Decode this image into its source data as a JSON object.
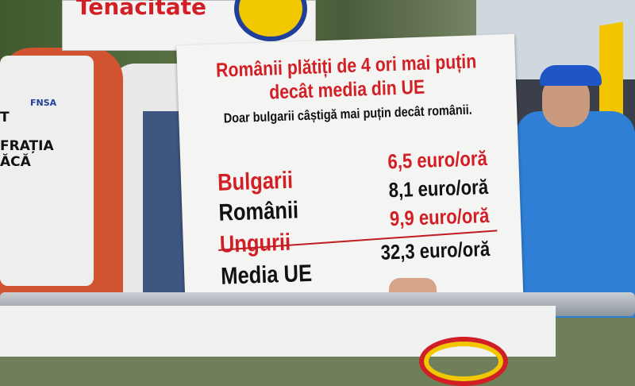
{
  "top_sign": {
    "text": "Tenacitate"
  },
  "vest_left": {
    "logo": "FNSA",
    "lines": [
      "T",
      "FRAȚIA",
      "ĂCĂ"
    ]
  },
  "sign": {
    "headline_line1": "Românii plătiți de 4 ori mai puțin",
    "headline_line2": "decât media din UE",
    "subtitle": "Doar bulgarii câștigă mai puțin decât românii.",
    "rows": [
      {
        "label": "Bulgarii",
        "value": "6,5 euro/oră",
        "color": "#d21f26"
      },
      {
        "label": "Românii",
        "value": "8,1 euro/oră",
        "color": "#111111"
      },
      {
        "label": "Ungurii",
        "value": "9,9 euro/oră",
        "color": "#d21f26"
      },
      {
        "label": "Media UE",
        "value": "32,3 euro/oră",
        "color": "#111111"
      }
    ]
  },
  "colors": {
    "sign_red": "#d21f26",
    "vest_blue": "#2f7fd6",
    "flag_yellow": "#f2c500"
  }
}
